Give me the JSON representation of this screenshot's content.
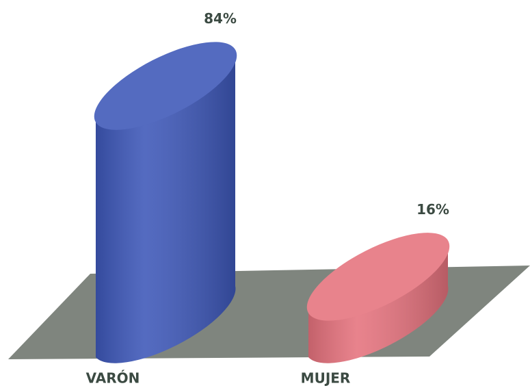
{
  "chart_data": {
    "type": "bar3d",
    "categories": [
      "VARÓN",
      "MUJER"
    ],
    "values": [
      84,
      16
    ],
    "value_labels": [
      "84%",
      "16%"
    ],
    "colors": [
      "#3d57b8",
      "#e5727d"
    ]
  }
}
